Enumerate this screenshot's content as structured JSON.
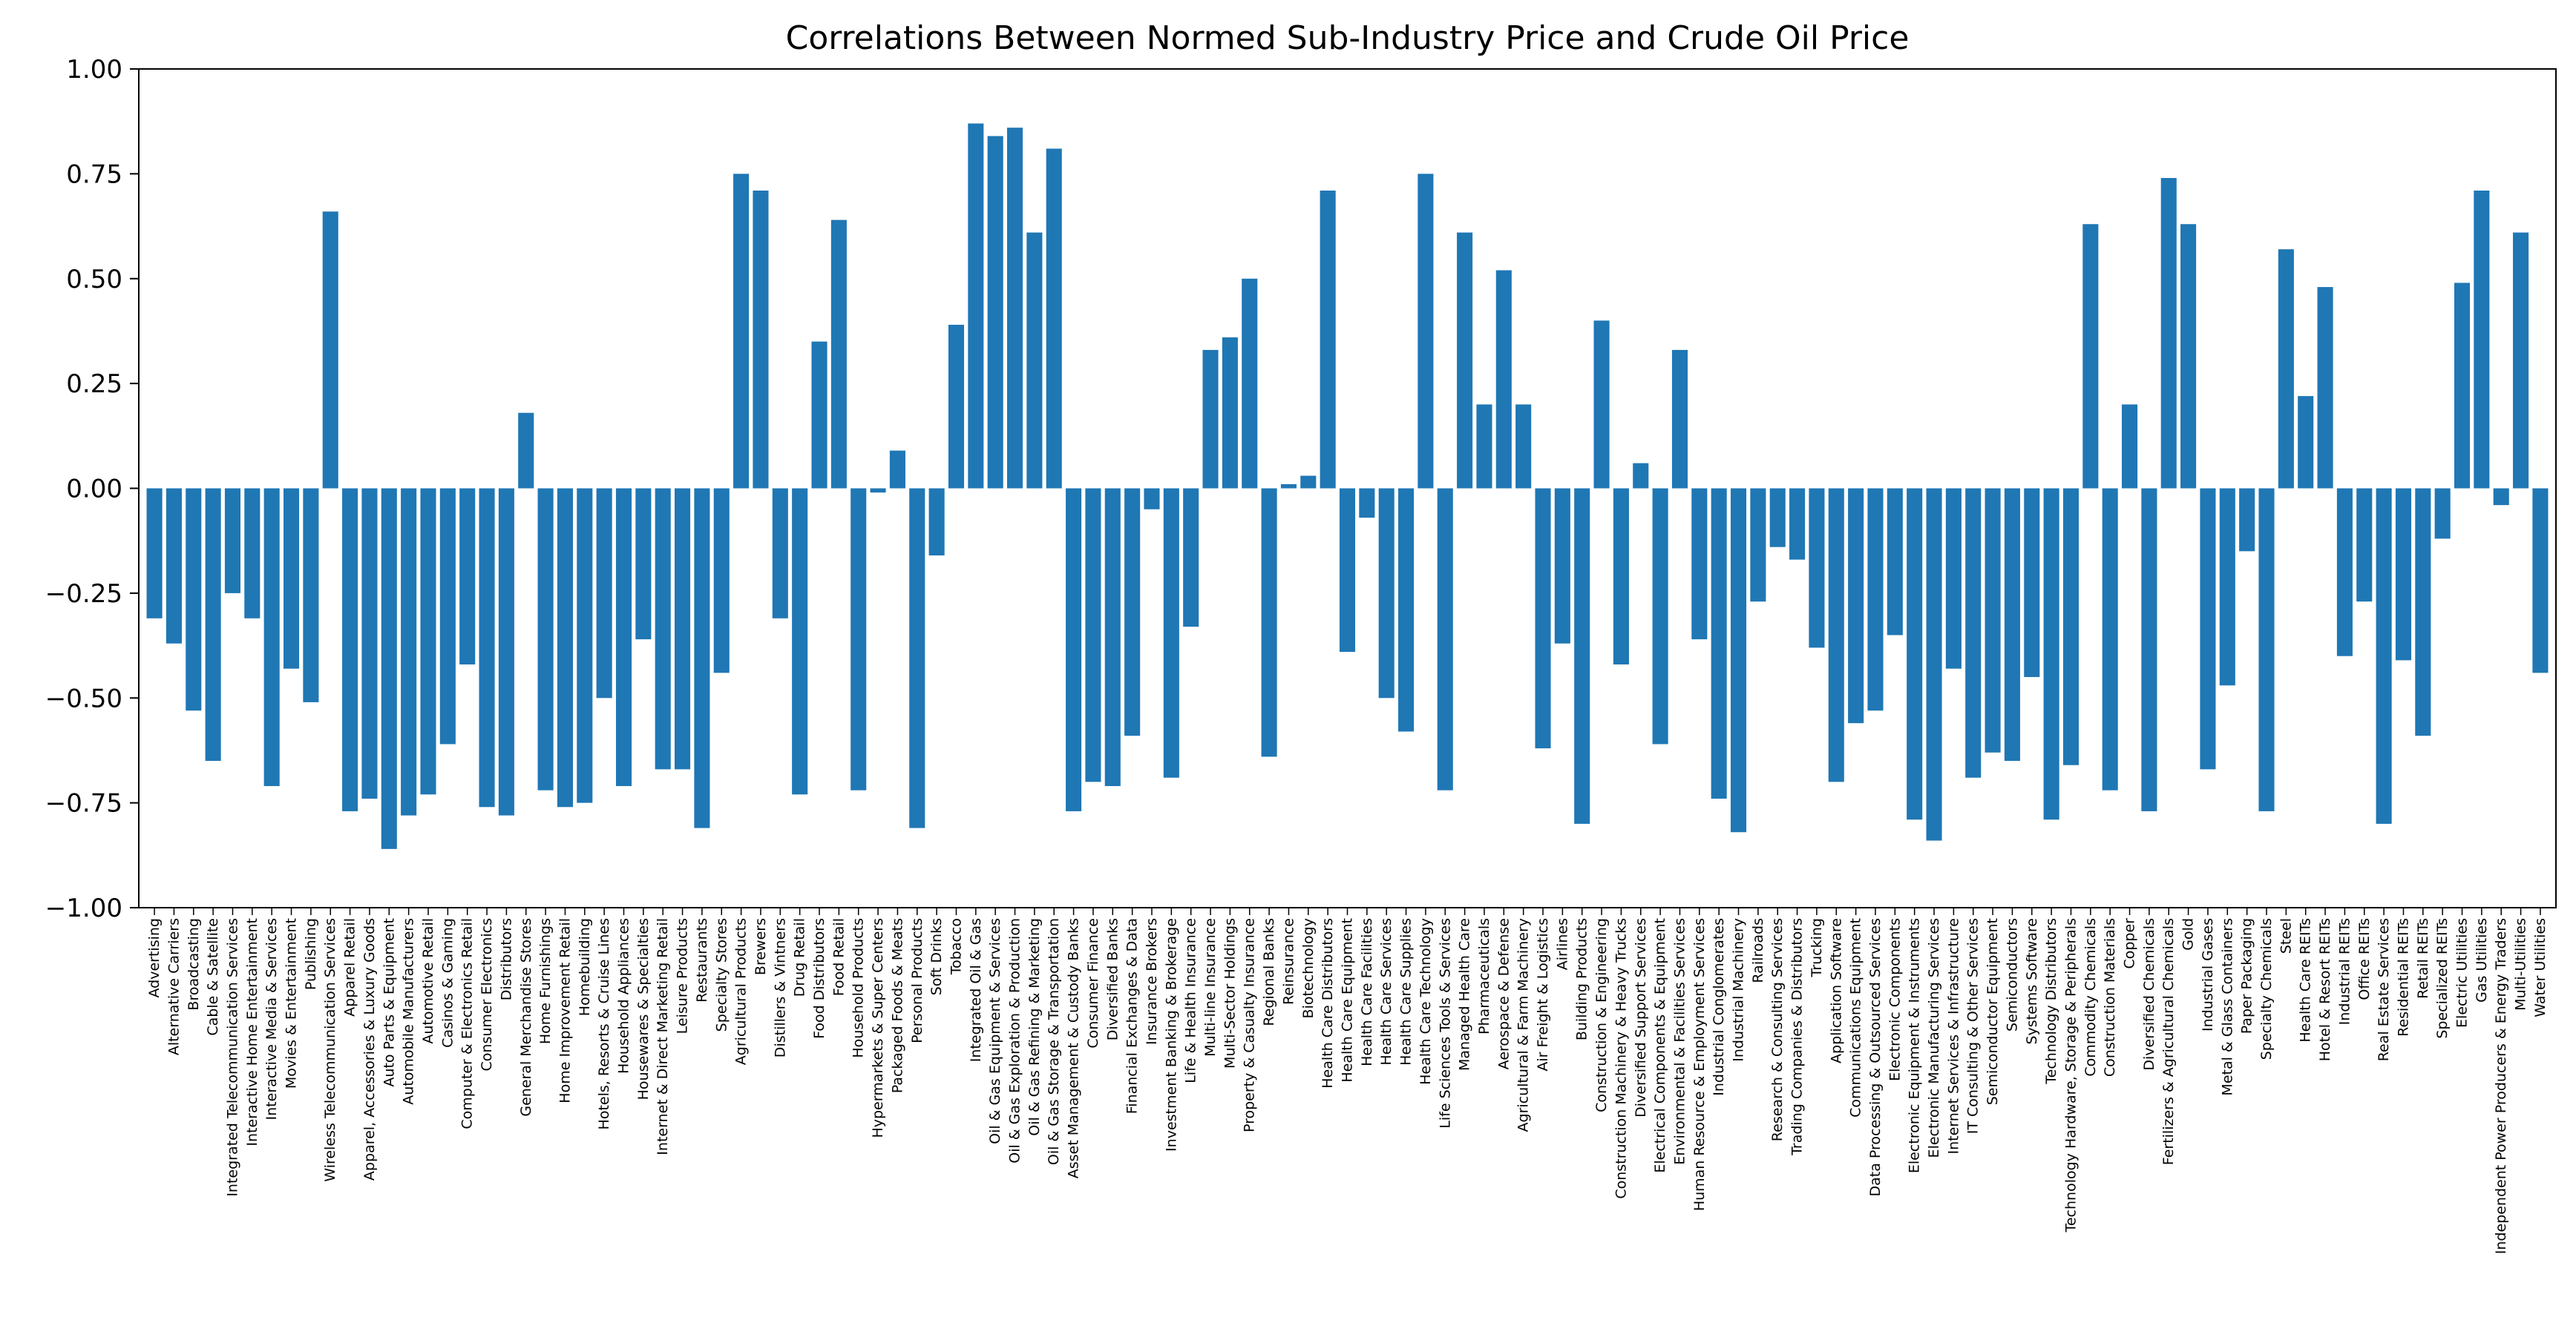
{
  "chart_data": {
    "type": "bar",
    "title": "Correlations Between Normed Sub-Industry Price and Crude Oil Price",
    "xlabel": "",
    "ylabel": "",
    "ylim": [
      -1.0,
      1.0
    ],
    "yticks": [
      -1.0,
      -0.75,
      -0.5,
      -0.25,
      0.0,
      0.25,
      0.5,
      0.75,
      1.0
    ],
    "ytick_labels": [
      "−1.00",
      "−0.75",
      "−0.50",
      "−0.25",
      "0.00",
      "0.25",
      "0.50",
      "0.75",
      "1.00"
    ],
    "grid": false,
    "bar_color": "#1f77b4",
    "categories": [
      "Advertising",
      "Alternative Carriers",
      "Broadcasting",
      "Cable & Satellite",
      "Integrated Telecommunication Services",
      "Interactive Home Entertainment",
      "Interactive Media & Services",
      "Movies & Entertainment",
      "Publishing",
      "Wireless Telecommunication Services",
      "Apparel Retail",
      "Apparel, Accessories & Luxury Goods",
      "Auto Parts & Equipment",
      "Automobile Manufacturers",
      "Automotive Retail",
      "Casinos & Gaming",
      "Computer & Electronics Retail",
      "Consumer Electronics",
      "Distributors",
      "General Merchandise Stores",
      "Home Furnishings",
      "Home Improvement Retail",
      "Homebuilding",
      "Hotels, Resorts & Cruise Lines",
      "Household Appliances",
      "Housewares & Specialties",
      "Internet & Direct Marketing Retail",
      "Leisure Products",
      "Restaurants",
      "Specialty Stores",
      "Agricultural Products",
      "Brewers",
      "Distillers & Vintners",
      "Drug Retail",
      "Food Distributors",
      "Food Retail",
      "Household Products",
      "Hypermarkets & Super Centers",
      "Packaged Foods & Meats",
      "Personal Products",
      "Soft Drinks",
      "Tobacco",
      "Integrated Oil & Gas",
      "Oil & Gas Equipment & Services",
      "Oil & Gas Exploration & Production",
      "Oil & Gas Refining & Marketing",
      "Oil & Gas Storage & Transportation",
      "Asset Management & Custody Banks",
      "Consumer Finance",
      "Diversified Banks",
      "Financial Exchanges & Data",
      "Insurance Brokers",
      "Investment Banking & Brokerage",
      "Life & Health Insurance",
      "Multi-line Insurance",
      "Multi-Sector Holdings",
      "Property & Casualty Insurance",
      "Regional Banks",
      "Reinsurance",
      "Biotechnology",
      "Health Care Distributors",
      "Health Care Equipment",
      "Health Care Facilities",
      "Health Care Services",
      "Health Care Supplies",
      "Health Care Technology",
      "Life Sciences Tools & Services",
      "Managed Health Care",
      "Pharmaceuticals",
      "Aerospace & Defense",
      "Agricultural & Farm Machinery",
      "Air Freight & Logistics",
      "Airlines",
      "Building Products",
      "Construction & Engineering",
      "Construction Machinery & Heavy Trucks",
      "Diversified Support Services",
      "Electrical Components & Equipment",
      "Environmental & Facilities Services",
      "Human Resource & Employment Services",
      "Industrial Conglomerates",
      "Industrial Machinery",
      "Railroads",
      "Research & Consulting Services",
      "Trading Companies & Distributors",
      "Trucking",
      "Application Software",
      "Communications Equipment",
      "Data Processing & Outsourced Services",
      "Electronic Components",
      "Electronic Equipment & Instruments",
      "Electronic Manufacturing Services",
      "Internet Services & Infrastructure",
      "IT Consulting & Other Services",
      "Semiconductor Equipment",
      "Semiconductors",
      "Systems Software",
      "Technology Distributors",
      "Technology Hardware, Storage & Peripherals",
      "Commodity Chemicals",
      "Construction Materials",
      "Copper",
      "Diversified Chemicals",
      "Fertilizers & Agricultural Chemicals",
      "Gold",
      "Industrial Gases",
      "Metal & Glass Containers",
      "Paper Packaging",
      "Specialty Chemicals",
      "Steel",
      "Health Care REITs",
      "Hotel & Resort REITs",
      "Industrial REITs",
      "Office REITs",
      "Real Estate Services",
      "Residential REITs",
      "Retail REITs",
      "Specialized REITs",
      "Electric Utilities",
      "Gas Utilities",
      "Independent Power Producers & Energy Traders",
      "Multi-Utilities",
      "Water Utilities"
    ],
    "values": [
      -0.31,
      -0.37,
      -0.53,
      -0.65,
      -0.25,
      -0.31,
      -0.71,
      -0.43,
      -0.51,
      0.66,
      -0.77,
      -0.74,
      -0.86,
      -0.78,
      -0.73,
      -0.61,
      -0.42,
      -0.76,
      -0.78,
      0.18,
      -0.72,
      -0.76,
      -0.75,
      -0.5,
      -0.71,
      -0.36,
      -0.67,
      -0.67,
      -0.81,
      -0.44,
      0.75,
      0.71,
      -0.31,
      -0.73,
      0.35,
      0.64,
      -0.72,
      -0.01,
      0.09,
      -0.81,
      -0.16,
      0.39,
      0.87,
      0.84,
      0.86,
      0.61,
      0.81,
      -0.77,
      -0.7,
      -0.71,
      -0.59,
      -0.05,
      -0.69,
      -0.33,
      0.33,
      0.36,
      0.5,
      -0.64,
      0.01,
      0.03,
      0.71,
      -0.39,
      -0.07,
      -0.5,
      -0.58,
      0.75,
      -0.72,
      0.61,
      0.2,
      0.52,
      0.2,
      -0.62,
      -0.37,
      -0.8,
      0.4,
      -0.42,
      0.06,
      -0.61,
      0.33,
      -0.36,
      -0.74,
      -0.82,
      -0.27,
      -0.14,
      -0.17,
      -0.38,
      -0.7,
      -0.56,
      -0.53,
      -0.35,
      -0.79,
      -0.84,
      -0.43,
      -0.69,
      -0.63,
      -0.65,
      -0.45,
      -0.79,
      -0.66,
      0.63,
      -0.72,
      0.2,
      -0.77,
      0.74,
      0.63,
      -0.67,
      -0.47,
      -0.15,
      -0.77,
      0.57,
      0.22,
      0.48,
      -0.4,
      -0.27,
      -0.8,
      -0.41,
      -0.59,
      -0.12,
      0.49,
      0.71,
      -0.04,
      0.61,
      -0.44
    ]
  }
}
